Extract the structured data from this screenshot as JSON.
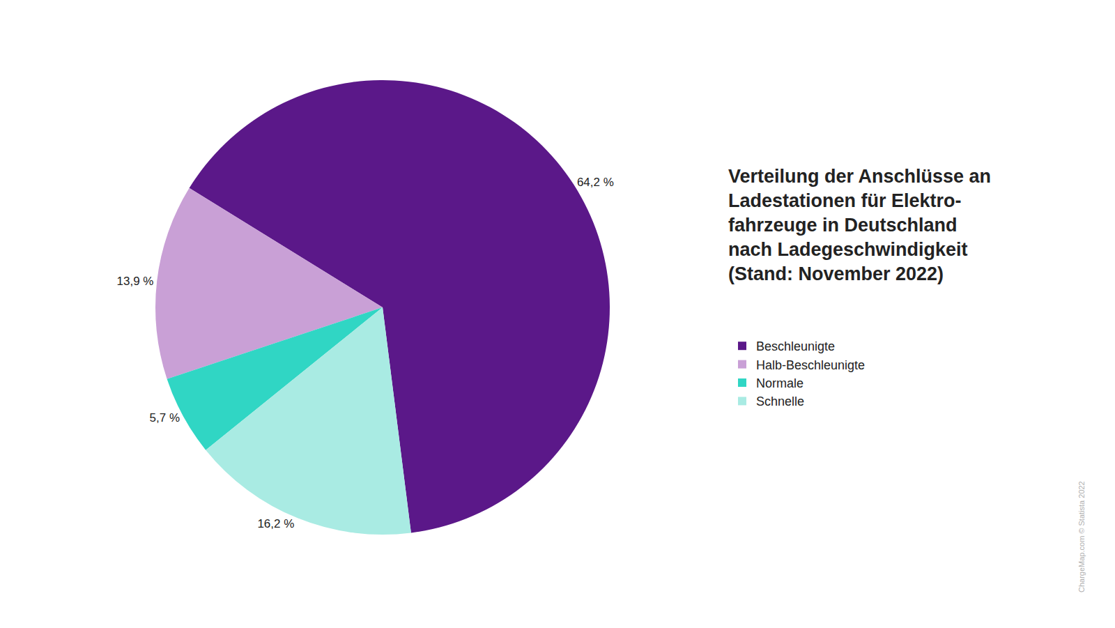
{
  "chart_data": {
    "type": "pie",
    "title": "Verteilung der Anschlüsse an\nLadestationen für Elektro-\nfahrzeuge in Deutschland\nnach Ladegeschwindigkeit\n(Stand: November 2022)",
    "categories": [
      "Beschleunigte",
      "Halb-Beschleunigte",
      "Normale",
      "Schnelle"
    ],
    "values": [
      64.2,
      13.9,
      5.7,
      16.2
    ],
    "value_labels": [
      "64,2 %",
      "13,9 %",
      "5,7 %",
      "16,2 %"
    ],
    "colors": [
      "#5b1889",
      "#c9a0d6",
      "#30d6c4",
      "#a9ebe3"
    ],
    "data_labels": true,
    "legend": "right",
    "annotations": [
      "ChargeMap.com © Statista 2022"
    ]
  }
}
